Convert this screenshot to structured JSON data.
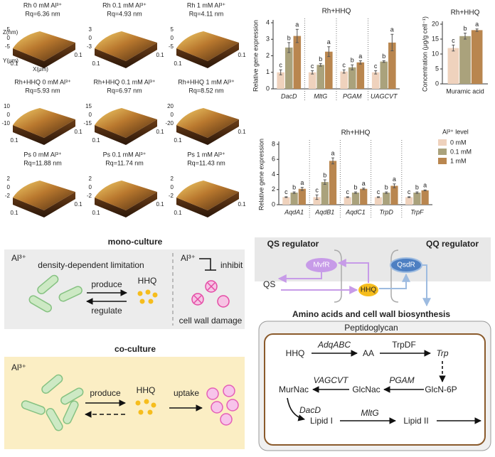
{
  "afm": {
    "axis_labels": {
      "z": "Z(nm)",
      "y": "Y(μm)",
      "x": "X(μm)"
    },
    "panels": [
      {
        "title": "Rh 0 mM Al³⁺",
        "roughness": "Rq=6.36 nm",
        "zticks": [
          "5",
          "0",
          "-5"
        ],
        "xyticks": [
          "0.1",
          "0.1"
        ]
      },
      {
        "title": "Rh 0.1 mM Al³⁺",
        "roughness": "Rq=4.93 nm",
        "zticks": [
          "3",
          "0",
          "-3"
        ],
        "xyticks": [
          "0.1",
          "0.1"
        ]
      },
      {
        "title": "Rh 1 mM Al³⁺",
        "roughness": "Rq=4.11 nm",
        "zticks": [
          "5",
          "0",
          "-5"
        ],
        "xyticks": [
          "0.1",
          "0.1"
        ]
      },
      {
        "title": "Rh+HHQ  0 mM Al³⁺",
        "roughness": "Rq=5.93 nm",
        "zticks": [
          "10",
          "0",
          "-10"
        ],
        "xyticks": [
          "0.1",
          "0.1"
        ]
      },
      {
        "title": "Rh+HHQ 0.1 mM Al³⁺",
        "roughness": "Rq=6.97 nm",
        "zticks": [
          "15",
          "0",
          "-15"
        ],
        "xyticks": [
          "0.1",
          "0.1"
        ]
      },
      {
        "title": "Rh+HHQ 1 mM Al³⁺",
        "roughness": "Rq=8.52 nm",
        "zticks": [
          "20",
          "0",
          "-20"
        ],
        "xyticks": [
          "0.1",
          "0.1"
        ]
      },
      {
        "title": "Ps 0 mM Al³⁺",
        "roughness": "Rq=11.88 nm",
        "zticks": [
          "2",
          "0",
          "-2"
        ],
        "xyticks": [
          "0.1",
          "0.1"
        ]
      },
      {
        "title": "Ps 0.1 mM Al³⁺",
        "roughness": "Rq=11.74 nm",
        "zticks": [
          "2",
          "0",
          "-2"
        ],
        "xyticks": [
          "0.1",
          "0.1"
        ]
      },
      {
        "title": "Ps 1 mM Al³⁺",
        "roughness": "Rq=11.43 nm",
        "zticks": [
          "2",
          "0",
          "-2"
        ],
        "xyticks": [
          "0.1",
          "0.1"
        ]
      }
    ]
  },
  "chart_data": [
    {
      "type": "bar",
      "title": "Rh+HHQ",
      "y_label": "Relative gene expression",
      "category_style": "italic",
      "categories": [
        "DacD",
        "MltG",
        "PGAM",
        "UAGCVT"
      ],
      "series": [
        {
          "color": "#efd2bd",
          "values": [
            1.0,
            1.0,
            1.05,
            1.0
          ],
          "errors": [
            0.15,
            0.1,
            0.1,
            0.1
          ],
          "letters": [
            "c",
            "c",
            "c",
            "c"
          ]
        },
        {
          "color": "#aaa27c",
          "values": [
            2.5,
            1.45,
            1.3,
            1.65
          ],
          "errors": [
            0.3,
            0.08,
            0.15,
            0.05
          ],
          "letters": [
            "b",
            "b",
            "b",
            "b"
          ]
        },
        {
          "color": "#b9864f",
          "values": [
            3.2,
            2.25,
            1.6,
            2.8
          ],
          "errors": [
            0.4,
            0.3,
            0.1,
            0.5
          ],
          "letters": [
            "a",
            "a",
            "a",
            "a"
          ]
        }
      ],
      "ylim": [
        0,
        4
      ],
      "yticks": [
        0,
        1,
        2,
        3,
        4
      ]
    },
    {
      "type": "bar",
      "title": "Rh+HHQ",
      "y_label": "Concentration (μg/g cell⁻¹)",
      "category_style": "normal",
      "categories": [
        "Muramic acid"
      ],
      "series": [
        {
          "color": "#efd2bd",
          "values": [
            12
          ],
          "errors": [
            1
          ],
          "letters": [
            "c"
          ]
        },
        {
          "color": "#aaa27c",
          "values": [
            16
          ],
          "errors": [
            1
          ],
          "letters": [
            "b"
          ]
        },
        {
          "color": "#b9864f",
          "values": [
            18
          ],
          "errors": [
            0.4
          ],
          "letters": [
            "a"
          ]
        }
      ],
      "ylim": [
        0,
        20
      ],
      "yticks": [
        0,
        5,
        10,
        15,
        20
      ]
    },
    {
      "type": "bar",
      "title": "Rh+HHQ",
      "y_label": "Relative gene expression",
      "category_style": "italic",
      "legend_title": "Al³⁺ level",
      "categories": [
        "AqdA1",
        "AqdB1",
        "AqdC1",
        "TrpD",
        "TrpF"
      ],
      "series": [
        {
          "name": "0 mM",
          "color": "#efd2bd",
          "values": [
            1.0,
            1.0,
            1.0,
            1.0,
            1.0
          ],
          "errors": [
            0.05,
            0.3,
            0.05,
            0.05,
            0.05
          ],
          "letters": [
            "c",
            "c",
            "c",
            "c",
            "c"
          ]
        },
        {
          "name": "0.1 mM",
          "color": "#aaa27c",
          "values": [
            1.6,
            3.0,
            1.6,
            1.6,
            1.6
          ],
          "errors": [
            0.1,
            0.3,
            0.1,
            0.1,
            0.1
          ],
          "letters": [
            "b",
            "b",
            "b",
            "b",
            "b"
          ]
        },
        {
          "name": "1 mM",
          "color": "#b9864f",
          "values": [
            2.1,
            5.8,
            2.1,
            2.5,
            1.9
          ],
          "errors": [
            0.2,
            0.4,
            0.1,
            0.25,
            0.05
          ],
          "letters": [
            "a",
            "a",
            "a",
            "a",
            "a"
          ]
        }
      ],
      "ylim": [
        0,
        8
      ],
      "yticks": [
        0,
        2,
        4,
        6,
        8
      ]
    }
  ],
  "mono_culture": {
    "title": "mono-culture",
    "al": "Al³⁺",
    "limitation": "density-dependent limitation",
    "produce": "produce",
    "regulate": "regulate",
    "hhq": "HHQ",
    "al_right": "Al³⁺",
    "inhibit": "inhibit",
    "damage": "cell wall damage"
  },
  "co_culture": {
    "title": "co-culture",
    "al": "Al³⁺",
    "produce": "produce",
    "hhq": "HHQ",
    "uptake": "uptake"
  },
  "regulation": {
    "qs_title": "QS regulator",
    "qq_title": "QQ regulator",
    "mvfr": "MvfR",
    "qs": "QS",
    "hhq": "HHQ",
    "qsdr": "QsdR"
  },
  "pathway": {
    "title": "Amino acids and cell wall biosynthesis",
    "container": "Peptidoglycan",
    "nodes": [
      "HHQ",
      "AA",
      "Trp",
      "GlcN-6P",
      "GlcNac",
      "MurNac",
      "Lipid I",
      "Lipid II"
    ],
    "enzymes": [
      "AdqABC",
      "TrpDF",
      "PGAM",
      "VAGCVT",
      "DacD",
      "MltG"
    ]
  }
}
